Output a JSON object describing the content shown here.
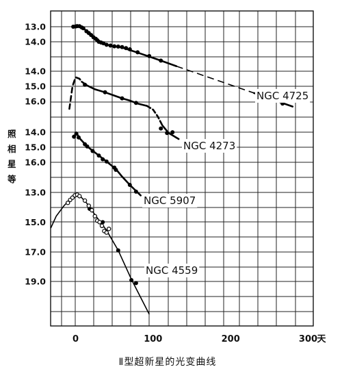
{
  "chart_data": {
    "type": "scatter",
    "title": "",
    "caption": "Ⅱ型超新星的光变曲线",
    "ylabel": "照相星等",
    "xlabel": "",
    "x_unit": "天",
    "xlim": [
      -35,
      300
    ],
    "x_ticks": [
      "0",
      "100",
      "200",
      "300"
    ],
    "grid": true,
    "color": "#000000",
    "series": [
      {
        "name": "NGC 4725",
        "y_ticks": [
          "13.0",
          "14.0"
        ],
        "points_filled": [
          [
            -3,
            13.0
          ],
          [
            0,
            12.98
          ],
          [
            2,
            12.96
          ],
          [
            5,
            12.97
          ],
          [
            8,
            13.05
          ],
          [
            10,
            13.1
          ],
          [
            14,
            13.3
          ],
          [
            17,
            13.42
          ],
          [
            20,
            13.55
          ],
          [
            23,
            13.7
          ],
          [
            26,
            13.8
          ],
          [
            28,
            13.9
          ],
          [
            30,
            14.0
          ],
          [
            33,
            14.05
          ],
          [
            36,
            14.1
          ],
          [
            40,
            14.2
          ],
          [
            45,
            14.25
          ],
          [
            50,
            14.3
          ],
          [
            55,
            14.32
          ],
          [
            60,
            14.35
          ],
          [
            65,
            14.42
          ],
          [
            70,
            14.5
          ],
          [
            80,
            14.7
          ],
          [
            95,
            14.95
          ],
          [
            110,
            15.25
          ],
          [
            240,
            17.6
          ],
          [
            267,
            18.1
          ]
        ],
        "curve": [
          [
            -4,
            13.0
          ],
          [
            0,
            12.96
          ],
          [
            5,
            12.98
          ],
          [
            10,
            13.1
          ],
          [
            20,
            13.55
          ],
          [
            30,
            13.98
          ],
          [
            40,
            14.2
          ],
          [
            50,
            14.3
          ],
          [
            60,
            14.38
          ],
          [
            70,
            14.55
          ],
          [
            80,
            14.72
          ],
          [
            95,
            14.98
          ],
          [
            110,
            15.25
          ],
          [
            130,
            15.62
          ]
        ],
        "extrapolation": [
          [
            130,
            15.62
          ],
          [
            230,
            17.4
          ]
        ],
        "tail": [
          [
            230,
            17.4
          ],
          [
            280,
            18.3
          ]
        ]
      },
      {
        "name": "NGC 4273",
        "y_ticks": [
          "14.0",
          "15.0",
          "16.0"
        ],
        "points_filled": [
          [
            12,
            14.9
          ],
          [
            38,
            15.4
          ],
          [
            60,
            15.8
          ],
          [
            78,
            16.1
          ],
          [
            110,
            17.8
          ],
          [
            118,
            18.1
          ],
          [
            125,
            18.05
          ]
        ],
        "peak_dashed": [
          [
            -8,
            16.5
          ],
          [
            -4,
            15.0
          ],
          [
            0,
            14.4
          ],
          [
            5,
            14.5
          ],
          [
            8,
            14.7
          ]
        ],
        "curve": [
          [
            8,
            14.7
          ],
          [
            15,
            14.95
          ],
          [
            25,
            15.2
          ],
          [
            38,
            15.4
          ],
          [
            50,
            15.62
          ],
          [
            60,
            15.8
          ],
          [
            70,
            15.95
          ],
          [
            80,
            16.15
          ],
          [
            92,
            16.3
          ]
        ],
        "decline_dashed": [
          [
            92,
            16.3
          ],
          [
            100,
            16.55
          ],
          [
            106,
            17.0
          ],
          [
            112,
            17.6
          ]
        ],
        "tail": [
          [
            112,
            17.6
          ],
          [
            120,
            18.1
          ],
          [
            133,
            18.5
          ]
        ]
      },
      {
        "name": "NGC 5907",
        "y_ticks": [
          "14.0",
          "15.0",
          "16.0"
        ],
        "points_filled": [
          [
            -2,
            14.3
          ],
          [
            1,
            14.1
          ],
          [
            4,
            14.35
          ],
          [
            12,
            14.8
          ],
          [
            15,
            14.95
          ],
          [
            22,
            15.25
          ],
          [
            30,
            15.55
          ],
          [
            35,
            15.8
          ],
          [
            40,
            15.95
          ],
          [
            50,
            16.35
          ],
          [
            52,
            16.5
          ],
          [
            70,
            17.5
          ],
          [
            78,
            17.95
          ]
        ],
        "curve": [
          [
            -2,
            14.3
          ],
          [
            1,
            14.05
          ],
          [
            6,
            14.45
          ],
          [
            15,
            14.95
          ],
          [
            30,
            15.55
          ],
          [
            40,
            15.95
          ],
          [
            52,
            16.45
          ],
          [
            60,
            16.95
          ],
          [
            70,
            17.5
          ],
          [
            84,
            18.2
          ]
        ]
      },
      {
        "name": "NGC 4559",
        "y_ticks": [
          "13.0",
          "15.0",
          "17.0",
          "19.0"
        ],
        "points_open": [
          [
            -10,
            13.7
          ],
          [
            -7,
            13.5
          ],
          [
            -4,
            13.35
          ],
          [
            -1,
            13.2
          ],
          [
            2,
            13.15
          ],
          [
            5,
            13.25
          ],
          [
            12,
            13.55
          ],
          [
            17,
            13.9
          ],
          [
            21,
            14.2
          ],
          [
            25,
            14.6
          ],
          [
            28,
            14.9
          ],
          [
            31,
            15.0
          ],
          [
            34,
            15.25
          ],
          [
            37,
            15.6
          ],
          [
            40,
            15.7
          ],
          [
            43,
            15.45
          ]
        ],
        "points_filled": [
          [
            18,
            14.1
          ],
          [
            35,
            15.0
          ],
          [
            55,
            16.9
          ],
          [
            72,
            18.9
          ],
          [
            78,
            19.1
          ]
        ],
        "curve": [
          [
            -32,
            15.4
          ],
          [
            -25,
            14.6
          ],
          [
            -15,
            13.9
          ],
          [
            -5,
            13.35
          ],
          [
            0,
            13.15
          ],
          [
            6,
            13.25
          ],
          [
            14,
            13.7
          ],
          [
            25,
            14.5
          ],
          [
            40,
            15.55
          ],
          [
            55,
            16.9
          ],
          [
            72,
            18.85
          ],
          [
            95,
            21.2
          ]
        ]
      }
    ]
  }
}
